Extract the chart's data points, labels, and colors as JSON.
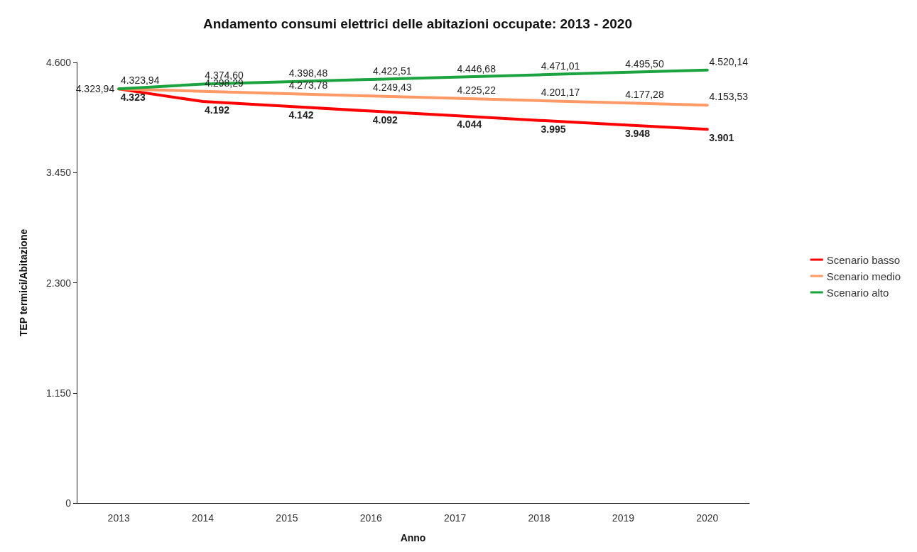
{
  "chart_data": {
    "type": "line",
    "title": "Andamento consumi elettrici delle abitazioni occupate: 2013 - 2020",
    "xlabel": "Anno",
    "ylabel": "TEP termici/Abitazione",
    "categories": [
      "2013",
      "2014",
      "2015",
      "2016",
      "2017",
      "2018",
      "2019",
      "2020"
    ],
    "series": [
      {
        "name": "Scenario basso",
        "color": "#ff0000",
        "values": [
          4323,
          4192,
          4142,
          4092,
          4044,
          3995,
          3948,
          3901
        ],
        "value_labels": [
          "4.323",
          "4.192",
          "4.142",
          "4.092",
          "4.044",
          "3.995",
          "3.948",
          "3.901"
        ]
      },
      {
        "name": "Scenario medio",
        "color": "#ff9966",
        "values": [
          4323.94,
          4298.29,
          4273.78,
          4249.43,
          4225.22,
          4201.17,
          4177.28,
          4153.53
        ],
        "value_labels": [
          "4.323,94",
          "4.298,29",
          "4.273,78",
          "4.249,43",
          "4.225,22",
          "4.201,17",
          "4.177,28",
          "4.153,53"
        ]
      },
      {
        "name": "Scenario alto",
        "color": "#1aa33f",
        "values": [
          4323.94,
          4374.6,
          4398.48,
          4422.51,
          4446.68,
          4471.01,
          4495.5,
          4520.14
        ],
        "value_labels": [
          "4.323,94",
          "4.374,60",
          "4.398,48",
          "4.422,51",
          "4.446,68",
          "4.471,01",
          "4.495,50",
          "4.520,14"
        ]
      }
    ],
    "ylim": [
      0,
      4600
    ],
    "yticks": [
      0,
      {
        "value": 1150,
        "label": "1.150"
      },
      {
        "value": 2300,
        "label": "2.300"
      },
      {
        "value": 3450,
        "label": "3.450"
      },
      {
        "value": 4600,
        "label": "4.600"
      }
    ],
    "grid": false,
    "legend": "right",
    "marker": "none",
    "line_style": "solid"
  }
}
